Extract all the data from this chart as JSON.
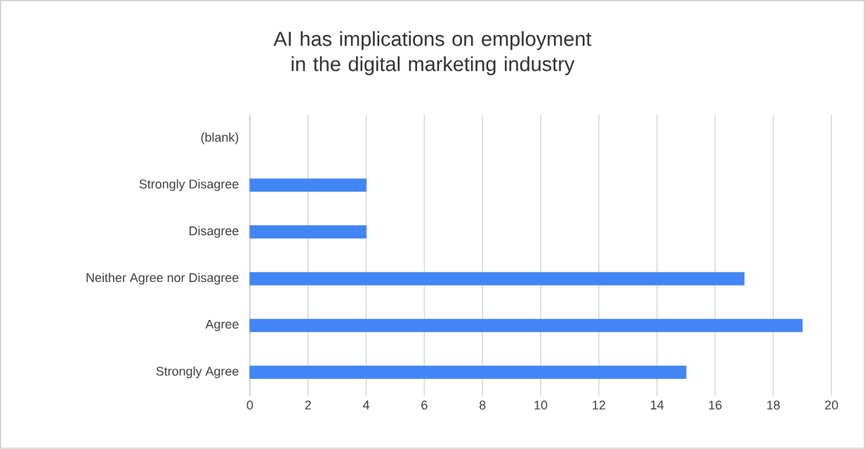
{
  "chart_data": {
    "type": "bar",
    "orientation": "horizontal",
    "title": "AI has implications on employment in the digital marketing industry",
    "categories": [
      "(blank)",
      "Strongly Disagree",
      "Disagree",
      "Neither Agree nor Disagree",
      "Agree",
      "Strongly Agree"
    ],
    "values": [
      null,
      4,
      4,
      17,
      19,
      15
    ],
    "color": "#4285f4",
    "xlim": [
      0,
      20
    ],
    "xticks": [
      0,
      2,
      4,
      6,
      8,
      10,
      12,
      14,
      16,
      18,
      20
    ],
    "grid": "x"
  }
}
